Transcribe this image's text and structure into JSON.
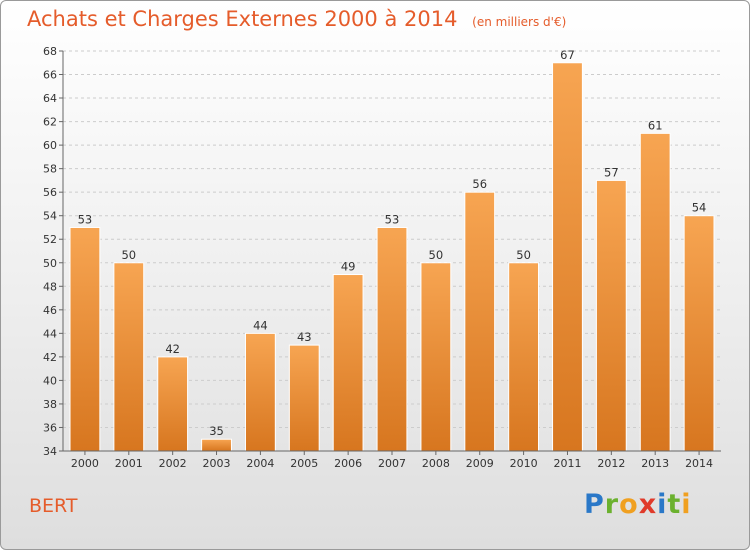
{
  "header": {
    "title": "Achats et Charges Externes 2000 à 2014",
    "subtitle": "(en milliers d'€)"
  },
  "footer": {
    "place": "BERT",
    "logo": [
      "P",
      "r",
      "o",
      "x",
      "i",
      "t",
      "i"
    ]
  },
  "colors": {
    "bar_top": "#f7a552",
    "bar_bottom": "#d7761f",
    "grid": "#cccccc",
    "title": "#e55c2b"
  },
  "chart_data": {
    "type": "bar",
    "categories": [
      "2000",
      "2001",
      "2002",
      "2003",
      "2004",
      "2005",
      "2006",
      "2007",
      "2008",
      "2009",
      "2010",
      "2011",
      "2012",
      "2013",
      "2014"
    ],
    "values": [
      53,
      50,
      42,
      35,
      44,
      43,
      49,
      53,
      50,
      56,
      50,
      67,
      57,
      61,
      54
    ],
    "ylim": [
      34,
      68
    ],
    "yticks": [
      34,
      36,
      38,
      40,
      42,
      44,
      46,
      48,
      50,
      52,
      54,
      56,
      58,
      60,
      62,
      64,
      66,
      68
    ],
    "grid": true,
    "title": "Achats et Charges Externes 2000 à 2014",
    "xlabel": "",
    "ylabel": ""
  }
}
